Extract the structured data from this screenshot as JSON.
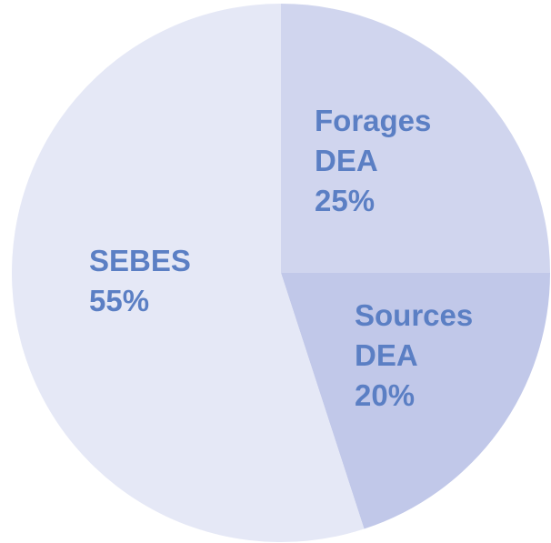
{
  "chart_data": {
    "type": "pie",
    "categories": [
      "Forages DEA",
      "Sources DEA",
      "SEBES"
    ],
    "values": [
      25,
      20,
      55
    ],
    "value_labels": [
      "25%",
      "20%",
      "55%"
    ],
    "colors": [
      "#d0d5ee",
      "#c1c8e9",
      "#e5e8f6"
    ]
  }
}
